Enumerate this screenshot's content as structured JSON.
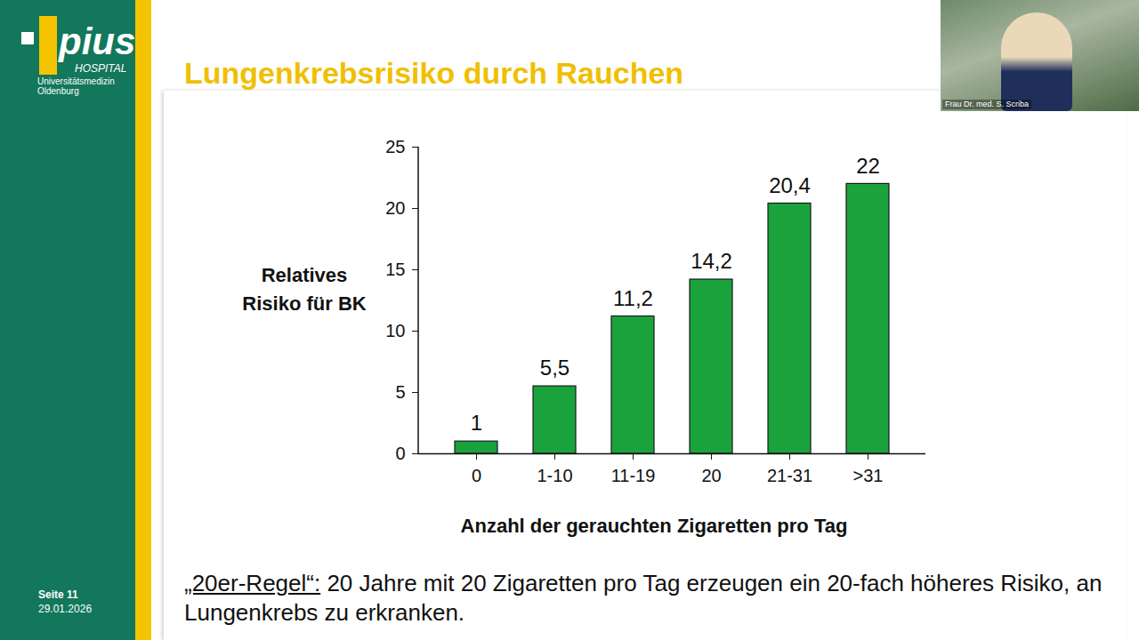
{
  "slide": {
    "logo": {
      "name": "pius",
      "sub": "HOSPITAL",
      "lines": [
        "Universitätsmedizin",
        "Oldenburg"
      ]
    },
    "page": "Seite 11",
    "date": "29.01.2026",
    "speaker": "Frau Dr. med. S. Scriba",
    "footer": {
      "label": "„20er-Regel“:",
      "text": "20 Jahre mit 20 Zigaretten pro Tag erzeugen ein 20-fach höheres Risiko, an Lungenkrebs zu erkranken."
    }
  },
  "chart_data": {
    "type": "bar",
    "title": "Lungenkrebsrisiko durch Rauchen",
    "x_label": "Anzahl der gerauchten Zigaretten pro Tag",
    "y_label": "Relatives Risiko für BK",
    "categories": [
      "0",
      "1-10",
      "11-19",
      "20",
      "21-31",
      ">31"
    ],
    "values": [
      1,
      5.5,
      11.2,
      14.2,
      20.4,
      22
    ],
    "value_labels": [
      "1",
      "5,5",
      "11,2",
      "14,2",
      "20,4",
      "22"
    ],
    "data_labels": true,
    "color": "#1aa33c",
    "ylim": [
      0,
      25
    ],
    "yticks": [
      0,
      5,
      10,
      15,
      20,
      25
    ],
    "grid": false
  }
}
